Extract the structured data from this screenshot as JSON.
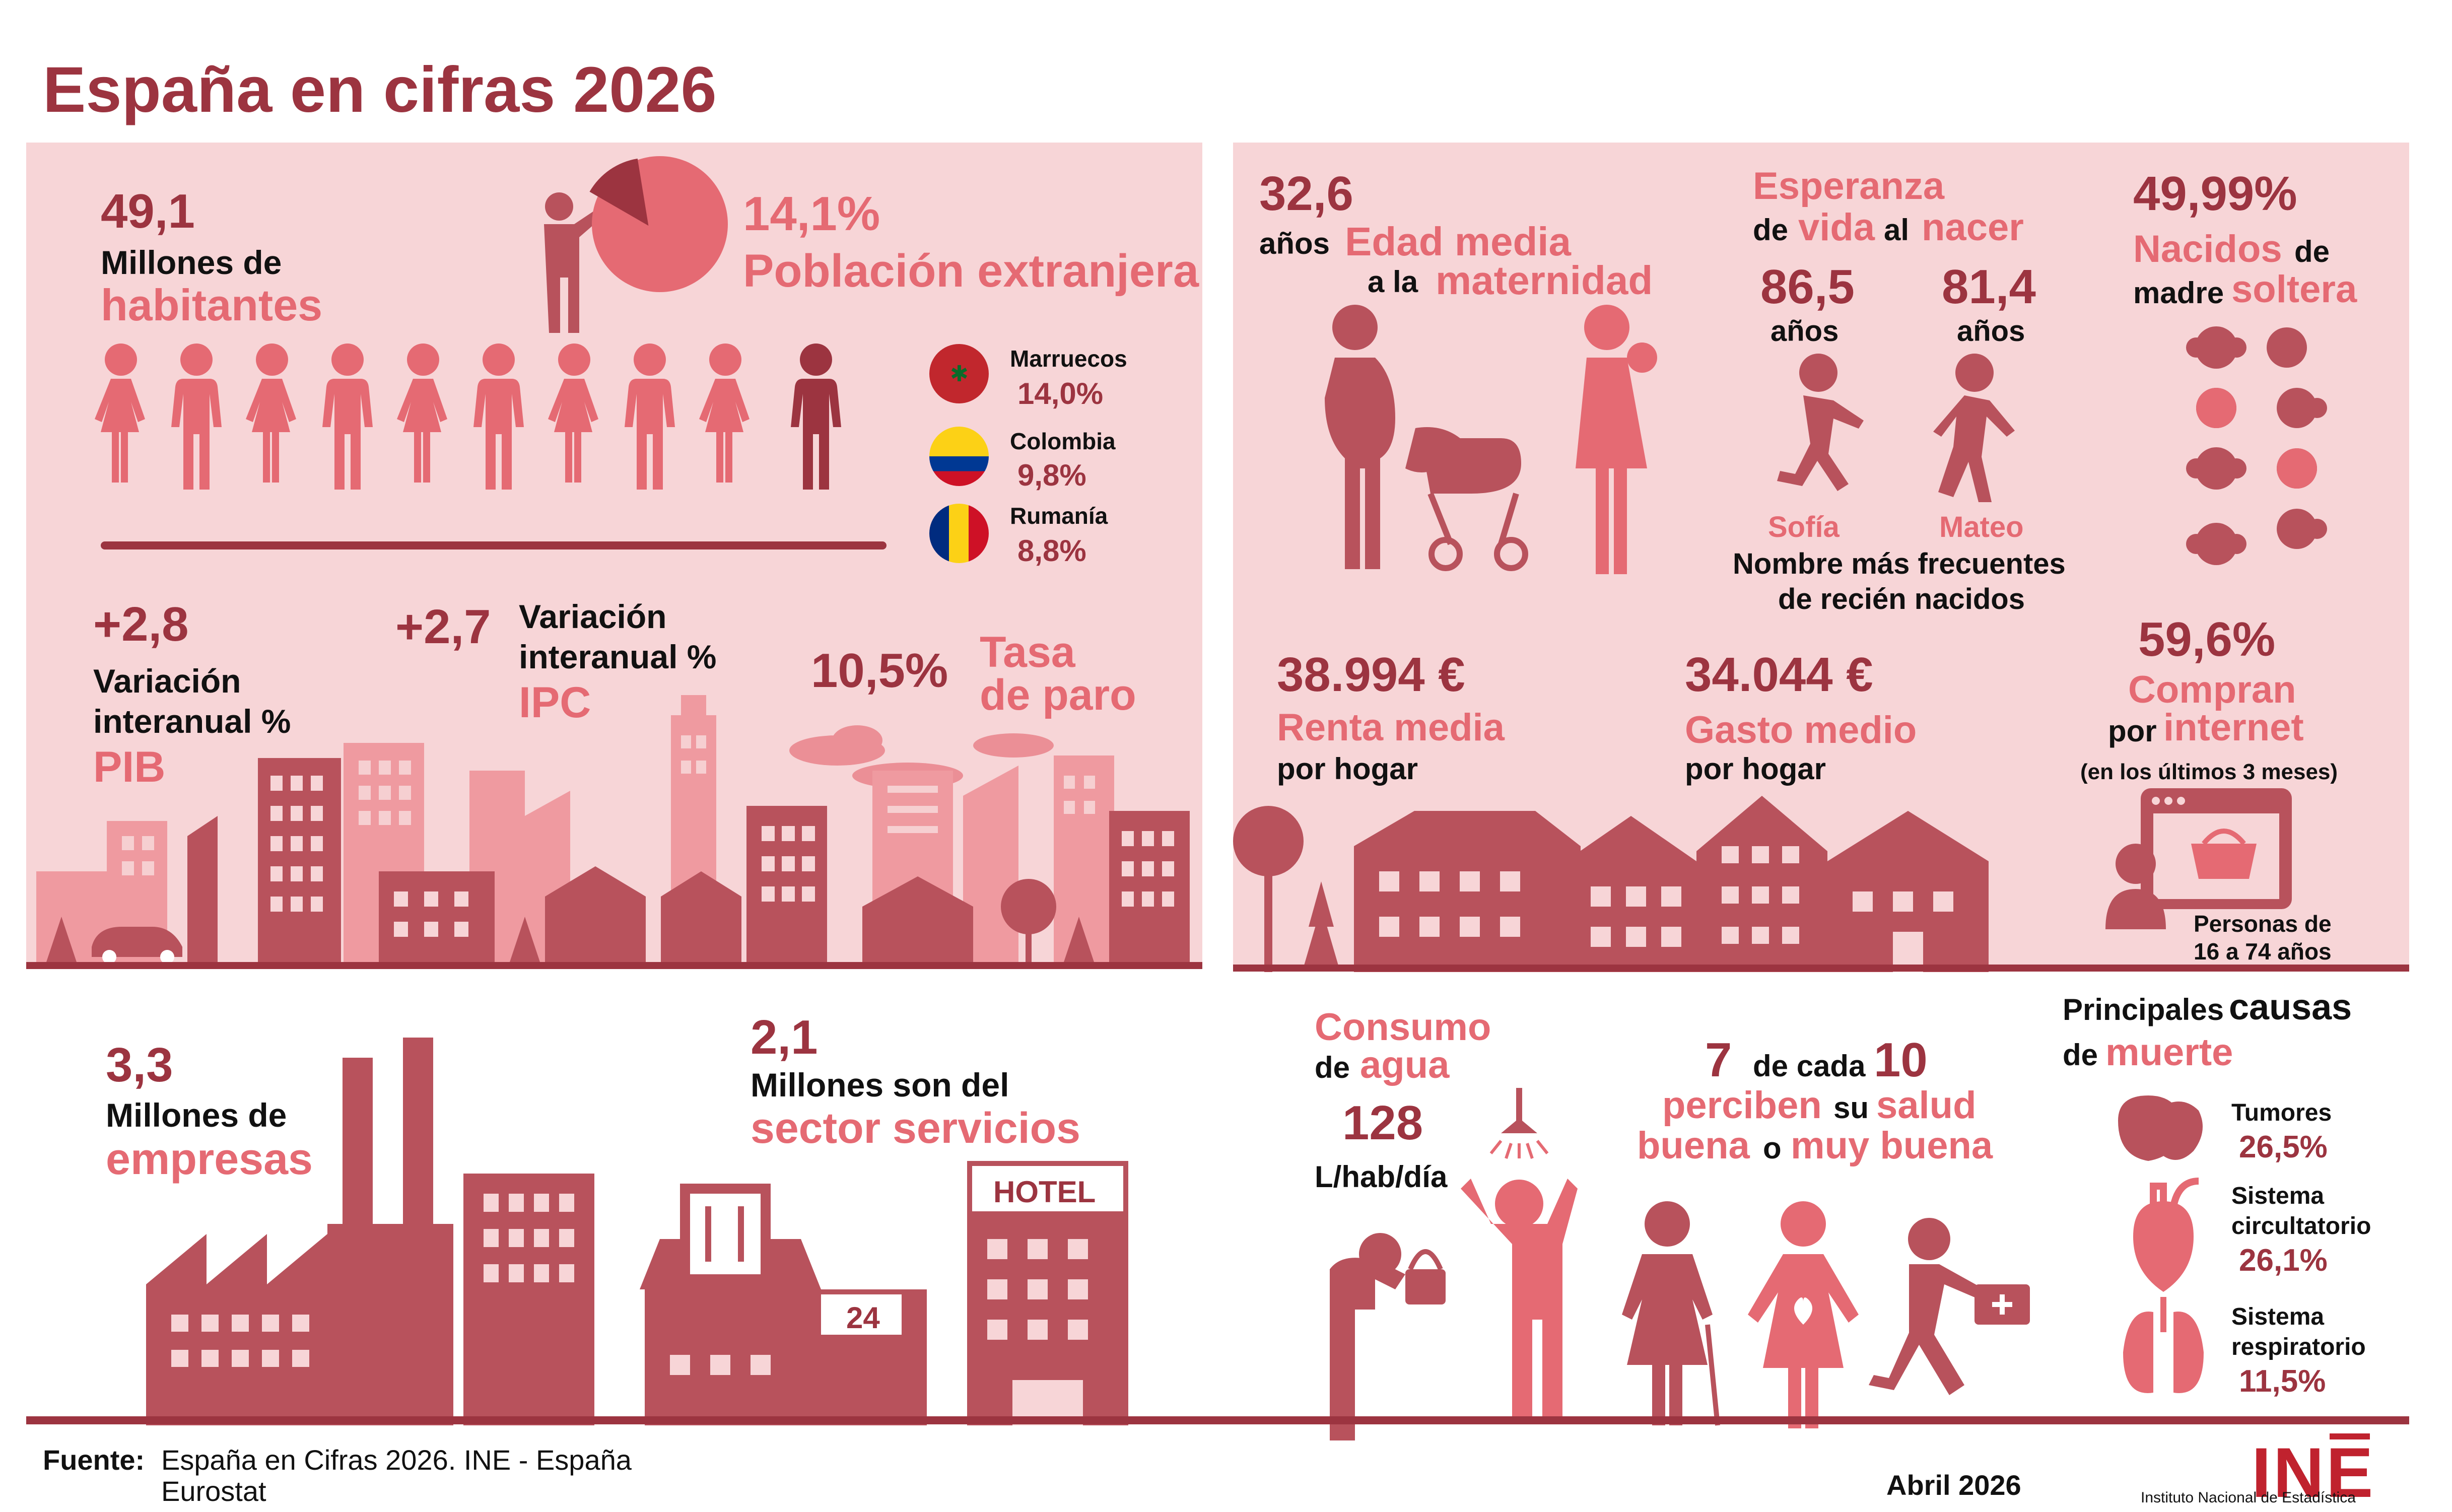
{
  "title": "España en cifras 2026",
  "colors": {
    "dark": "#9c3440",
    "mid": "#e56a73",
    "panel": "#f7d5d7",
    "deep": "#b8525c"
  },
  "population": {
    "value": "49,1",
    "label1": "Millones de",
    "label2": "habitantes"
  },
  "foreign": {
    "value": "14,1%",
    "label": "Población extranjera",
    "share": 0.141,
    "countries": [
      {
        "name": "Marruecos",
        "pct": "14,0%"
      },
      {
        "name": "Colombia",
        "pct": "9,8%"
      },
      {
        "name": "Rumanía",
        "pct": "8,8%"
      }
    ]
  },
  "pib": {
    "value": "+2,8",
    "label1": "Variación",
    "label2": "interanual %",
    "name": "PIB"
  },
  "ipc": {
    "value": "+2,7",
    "label1": "Variación",
    "label2": "interanual %",
    "name": "IPC"
  },
  "paro": {
    "value": "10,5%",
    "label1": "Tasa",
    "label2": "de paro"
  },
  "empresas": {
    "value": "3,3",
    "label1": "Millones de",
    "label2": "empresas"
  },
  "servicios": {
    "value": "2,1",
    "label1": "Millones son del",
    "label2": "sector servicios",
    "hotel_sign": "HOTEL",
    "store_sign": "24"
  },
  "maternity": {
    "value": "32,6",
    "unit": "años",
    "label1": "Edad media",
    "label2": "a la",
    "label3": "maternidad"
  },
  "life": {
    "w1": "Esperanza",
    "w2": "de",
    "w3": "vida",
    "w4": "al",
    "w5": "nacer",
    "female": "86,5",
    "male": "81,4",
    "unit": "años",
    "name_f": "Sofía",
    "name_m": "Mateo",
    "names_label1": "Nombre más frecuentes",
    "names_label2": "de recién nacidos"
  },
  "births": {
    "value": "49,99%",
    "w1": "Nacidos",
    "w2": "de",
    "w3": "madre",
    "w4": "soltera"
  },
  "income": {
    "value": "38.994 €",
    "label1": "Renta media",
    "label2": "por hogar"
  },
  "spending": {
    "value": "34.044 €",
    "label1": "Gasto medio",
    "label2": "por hogar"
  },
  "internet": {
    "value": "59,6%",
    "w1": "Compran",
    "w2": "por",
    "w3": "internet",
    "note": "(en los últimos 3 meses)",
    "people1": "Personas de",
    "people2": "16 a 74 años"
  },
  "water": {
    "label1": "Consumo",
    "label2": "de",
    "label3": "agua",
    "value": "128",
    "unit": "L/hab/día"
  },
  "health": {
    "n1": "7",
    "mid": "de cada",
    "n2": "10",
    "w1": "perciben",
    "w2": "su",
    "w3": "salud",
    "w4": "buena",
    "w5": "o",
    "w6": "muy buena"
  },
  "causes": {
    "t1": "Principales",
    "t2": "causas",
    "t3": "de",
    "t4": "muerte",
    "items": [
      {
        "name1": "Tumores",
        "name2": "",
        "pct": "26,5%"
      },
      {
        "name1": "Sistema",
        "name2": "circultatorio",
        "pct": "26,1%"
      },
      {
        "name1": "Sistema",
        "name2": "respiratorio",
        "pct": "11,5%"
      }
    ]
  },
  "footer": {
    "label": "Fuente:",
    "source1": "España en Cifras 2026. INE - España",
    "source2": "Eurostat",
    "date": "Abril 2026",
    "logo": "INE",
    "logo_sub": "Instituto Nacional de Estadística"
  }
}
